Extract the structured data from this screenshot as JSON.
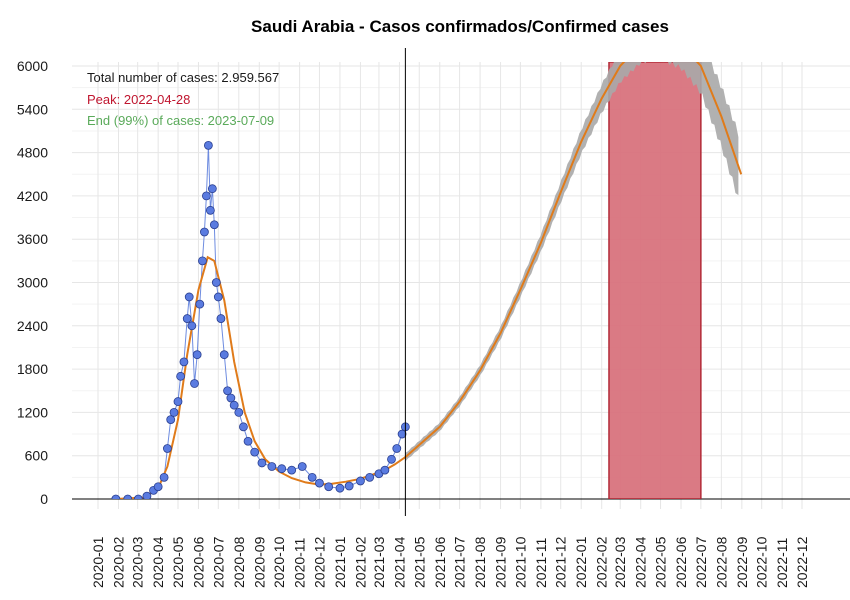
{
  "chart_data": {
    "type": "line",
    "title": "Saudi Arabia - Casos confirmados/Confirmed cases",
    "xlabel": "",
    "ylabel": "",
    "x_ticks": [
      "2020-01",
      "2020-02",
      "2020-03",
      "2020-04",
      "2020-05",
      "2020-06",
      "2020-07",
      "2020-08",
      "2020-09",
      "2020-10",
      "2020-11",
      "2020-12",
      "2021-01",
      "2021-02",
      "2021-03",
      "2021-04",
      "2021-05",
      "2021-06",
      "2021-07",
      "2021-08",
      "2021-09",
      "2021-10",
      "2021-11",
      "2021-12",
      "2022-01",
      "2022-02",
      "2022-03",
      "2022-04",
      "2022-05",
      "2022-06",
      "2022-07",
      "2022-08",
      "2022-09",
      "2022-10",
      "2022-11",
      "2022-12"
    ],
    "y_ticks": [
      0,
      600,
      1200,
      1800,
      2400,
      3000,
      3600,
      4200,
      4800,
      5400,
      6000
    ],
    "ylim": [
      0,
      6000
    ],
    "grid": true,
    "annotations": {
      "total": "Total number of cases: 2.959.567",
      "peak": "Peak: 2022-04-28",
      "end": "End (99%) of cases: 2023-07-09"
    },
    "today_marker": "2021-04-10",
    "peak_band": {
      "start": "2022-02-12",
      "end": "2022-07-01"
    },
    "series": [
      {
        "kind": "observed-daily-cases",
        "points": [
          [
            "2020-01-28",
            0
          ],
          [
            "2020-02-15",
            0
          ],
          [
            "2020-03-02",
            0
          ],
          [
            "2020-03-15",
            40
          ],
          [
            "2020-03-25",
            120
          ],
          [
            "2020-04-01",
            170
          ],
          [
            "2020-04-10",
            300
          ],
          [
            "2020-04-15",
            700
          ],
          [
            "2020-04-20",
            1100
          ],
          [
            "2020-04-25",
            1200
          ],
          [
            "2020-05-01",
            1350
          ],
          [
            "2020-05-05",
            1700
          ],
          [
            "2020-05-10",
            1900
          ],
          [
            "2020-05-15",
            2500
          ],
          [
            "2020-05-18",
            2800
          ],
          [
            "2020-05-22",
            2400
          ],
          [
            "2020-05-26",
            1600
          ],
          [
            "2020-05-30",
            2000
          ],
          [
            "2020-06-03",
            2700
          ],
          [
            "2020-06-07",
            3300
          ],
          [
            "2020-06-10",
            3700
          ],
          [
            "2020-06-13",
            4200
          ],
          [
            "2020-06-16",
            4900
          ],
          [
            "2020-06-19",
            4000
          ],
          [
            "2020-06-22",
            4300
          ],
          [
            "2020-06-25",
            3800
          ],
          [
            "2020-06-28",
            3000
          ],
          [
            "2020-07-01",
            2800
          ],
          [
            "2020-07-05",
            2500
          ],
          [
            "2020-07-10",
            2000
          ],
          [
            "2020-07-15",
            1500
          ],
          [
            "2020-07-20",
            1400
          ],
          [
            "2020-07-25",
            1300
          ],
          [
            "2020-08-01",
            1200
          ],
          [
            "2020-08-08",
            1000
          ],
          [
            "2020-08-15",
            800
          ],
          [
            "2020-08-25",
            650
          ],
          [
            "2020-09-05",
            500
          ],
          [
            "2020-09-20",
            450
          ],
          [
            "2020-10-05",
            420
          ],
          [
            "2020-10-20",
            400
          ],
          [
            "2020-11-05",
            450
          ],
          [
            "2020-11-20",
            300
          ],
          [
            "2020-12-01",
            220
          ],
          [
            "2020-12-15",
            170
          ],
          [
            "2021-01-01",
            150
          ],
          [
            "2021-01-15",
            180
          ],
          [
            "2021-02-01",
            250
          ],
          [
            "2021-02-15",
            300
          ],
          [
            "2021-03-01",
            350
          ],
          [
            "2021-03-10",
            400
          ],
          [
            "2021-03-20",
            550
          ],
          [
            "2021-03-28",
            700
          ],
          [
            "2021-04-05",
            900
          ],
          [
            "2021-04-10",
            1000
          ]
        ]
      },
      {
        "kind": "fitted-trend",
        "points": [
          [
            "2020-01-28",
            0
          ],
          [
            "2020-03-10",
            20
          ],
          [
            "2020-04-01",
            150
          ],
          [
            "2020-04-15",
            450
          ],
          [
            "2020-05-01",
            1100
          ],
          [
            "2020-05-15",
            2000
          ],
          [
            "2020-06-01",
            2900
          ],
          [
            "2020-06-15",
            3350
          ],
          [
            "2020-06-25",
            3300
          ],
          [
            "2020-07-10",
            2750
          ],
          [
            "2020-07-25",
            1900
          ],
          [
            "2020-08-10",
            1200
          ],
          [
            "2020-08-25",
            800
          ],
          [
            "2020-09-10",
            550
          ],
          [
            "2020-10-01",
            380
          ],
          [
            "2020-10-20",
            290
          ],
          [
            "2020-11-10",
            230
          ],
          [
            "2020-12-01",
            200
          ],
          [
            "2020-12-20",
            210
          ],
          [
            "2021-01-10",
            240
          ],
          [
            "2021-02-01",
            280
          ],
          [
            "2021-02-20",
            340
          ],
          [
            "2021-03-10",
            400
          ],
          [
            "2021-03-25",
            480
          ],
          [
            "2021-04-10",
            580
          ]
        ]
      },
      {
        "kind": "projection",
        "points": [
          [
            "2021-04-10",
            580
          ],
          [
            "2021-05-01",
            750
          ],
          [
            "2021-06-01",
            1000
          ],
          [
            "2021-07-01",
            1350
          ],
          [
            "2021-08-01",
            1780
          ],
          [
            "2021-09-01",
            2300
          ],
          [
            "2021-10-01",
            2900
          ],
          [
            "2021-11-01",
            3550
          ],
          [
            "2021-12-01",
            4250
          ],
          [
            "2022-01-01",
            4950
          ],
          [
            "2022-02-01",
            5550
          ],
          [
            "2022-03-01",
            6000
          ],
          [
            "2022-04-01",
            6300
          ],
          [
            "2022-04-28",
            6400
          ],
          [
            "2022-06-01",
            6300
          ],
          [
            "2022-07-01",
            6000
          ],
          [
            "2022-08-01",
            5300
          ],
          [
            "2022-08-31",
            4500
          ]
        ]
      }
    ]
  }
}
